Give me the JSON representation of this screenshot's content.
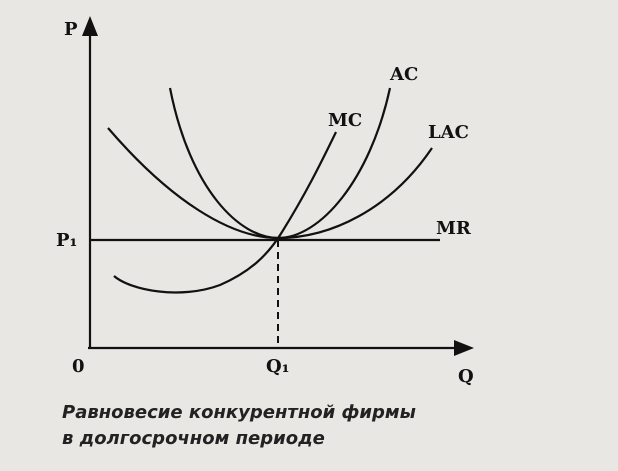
{
  "axes": {
    "y_label": "P",
    "x_label": "Q",
    "origin": "0",
    "price_level": "P₁",
    "quantity_level": "Q₁"
  },
  "curves": {
    "ac": "AC",
    "mc": "MC",
    "lac": "LAC",
    "mr": "MR"
  },
  "caption": {
    "line1": "Равновесие конкурентной фирмы",
    "line2": "в долгосрочном периоде"
  }
}
